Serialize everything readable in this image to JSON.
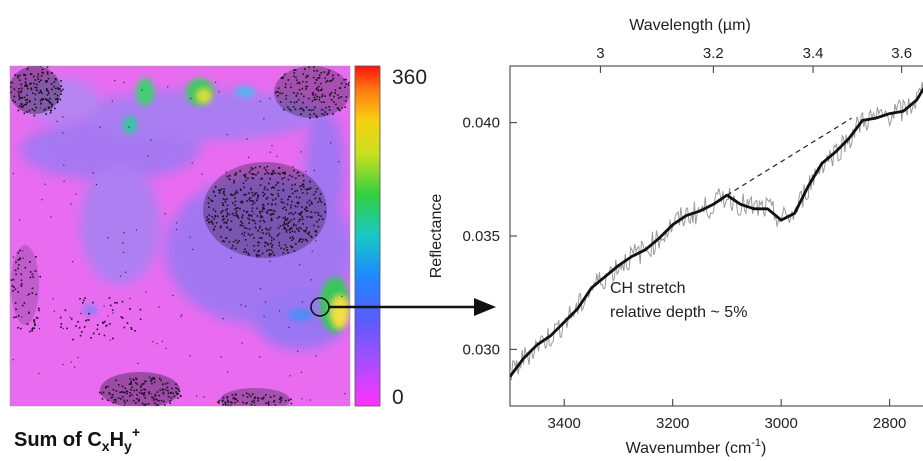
{
  "map_panel": {
    "caption": {
      "main": "Sum of C",
      "sub1": "x",
      "mid": "H",
      "sub2": "y",
      "sup": "+"
    },
    "colorbar": {
      "max_label": "360",
      "min_label": "0",
      "min": 0,
      "max": 360
    },
    "colors": {
      "background": "#e96cf0",
      "blue_haze": "#8b78f2",
      "dark_specks": "#1a1020",
      "hot_spot": "#f2e64a"
    }
  },
  "chart_data": {
    "type": "line",
    "xlabel_bottom": "Wavenumber (cm",
    "xlabel_bottom_sup": "-1",
    "xlabel_bottom_end": ")",
    "xlabel_top": "Wavelength (µm)",
    "ylabel": "Reflectance",
    "xlim": [
      3500,
      2720
    ],
    "ylim": [
      0.0275,
      0.0425
    ],
    "x_ticks": [
      3400,
      3200,
      3000,
      2800
    ],
    "x_tick_labels": [
      "3400",
      "3200",
      "3000",
      "2800"
    ],
    "y_ticks": [
      0.03,
      0.035,
      0.04
    ],
    "y_tick_labels": [
      "0.030",
      "0.035",
      "0.040"
    ],
    "top_ticks_um": [
      3.0,
      3.2,
      3.4,
      3.6
    ],
    "top_tick_labels": [
      "3",
      "3.2",
      "3.4",
      "3.6"
    ],
    "grid": false,
    "annotation": [
      "CH stretch",
      "relative depth ~ 5%"
    ],
    "series": [
      {
        "style": "smoothed-black",
        "x": [
          3500,
          3475,
          3450,
          3425,
          3400,
          3375,
          3350,
          3325,
          3300,
          3275,
          3250,
          3225,
          3200,
          3175,
          3150,
          3125,
          3100,
          3075,
          3050,
          3025,
          3000,
          2975,
          2950,
          2925,
          2900,
          2875,
          2850,
          2825,
          2800,
          2775,
          2750,
          2735,
          2720
        ],
        "y": [
          0.0288,
          0.0296,
          0.0302,
          0.0306,
          0.0312,
          0.0318,
          0.0327,
          0.0332,
          0.0337,
          0.0341,
          0.0344,
          0.0349,
          0.0355,
          0.0359,
          0.0361,
          0.0364,
          0.0368,
          0.0364,
          0.0362,
          0.0362,
          0.0357,
          0.036,
          0.0372,
          0.0382,
          0.0387,
          0.0393,
          0.0401,
          0.0402,
          0.0404,
          0.0405,
          0.041,
          0.0416,
          0.041
        ]
      },
      {
        "style": "dashed-continuum",
        "x": [
          3100,
          2870
        ],
        "y": [
          0.0368,
          0.0402
        ]
      }
    ]
  }
}
